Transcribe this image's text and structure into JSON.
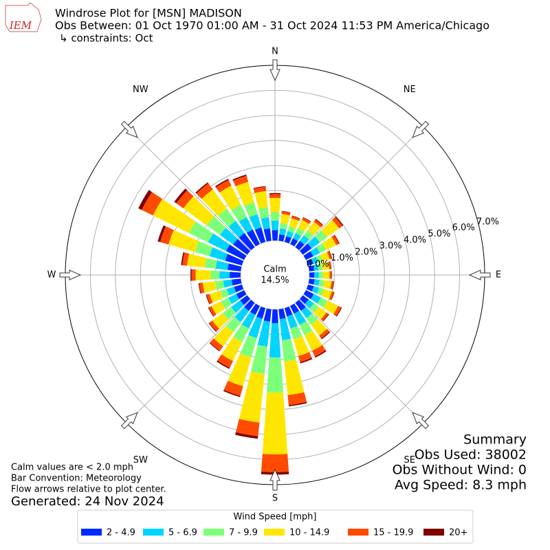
{
  "chart_data": {
    "type": "windrose",
    "logo": "IEM",
    "title": "Windrose Plot for [MSN] MADISON",
    "subtitles": [
      "Obs Between: 01 Oct 1970 01:00 AM - 31 Oct 2024 11:53 PM America/Chicago",
      "↳ constraints: Oct"
    ],
    "calm": [
      "Calm",
      "14.5%"
    ],
    "summary": [
      "Summary",
      "Obs Used: 38002",
      "Obs Without Wind: 0",
      "Avg Speed: 8.3 mph"
    ],
    "notes": [
      "Calm values are < 2.0 mph",
      "Bar Convention: Meteorology",
      "Flow arrows relative to plot center."
    ],
    "generated": "Generated: 24 Nov 2024",
    "legend_title": "Wind Speed [mph]",
    "rlim": [
      0,
      7
    ],
    "rticks": [
      {
        "value": 0,
        "label": "0.0%"
      },
      {
        "value": 1,
        "label": "1.0%"
      },
      {
        "value": 2,
        "label": "2.0%"
      },
      {
        "value": 3,
        "label": "3.0%"
      },
      {
        "value": 4,
        "label": "4.0%"
      },
      {
        "value": 5,
        "label": "5.0%"
      },
      {
        "value": 6,
        "label": "6.0%"
      },
      {
        "value": 7,
        "label": "7.0%"
      }
    ],
    "thetaticks": [
      {
        "value": 0,
        "label": "N"
      },
      {
        "value": 45,
        "label": "NE"
      },
      {
        "value": 90,
        "label": "E"
      },
      {
        "value": 135,
        "label": "SE"
      },
      {
        "value": 180,
        "label": "S"
      },
      {
        "value": 225,
        "label": "SW"
      },
      {
        "value": 270,
        "label": "W"
      },
      {
        "value": 315,
        "label": "NW"
      }
    ],
    "grid": true,
    "x": [
      0,
      10,
      20,
      30,
      40,
      50,
      60,
      70,
      80,
      90,
      100,
      110,
      120,
      130,
      140,
      150,
      160,
      170,
      180,
      190,
      200,
      210,
      220,
      230,
      240,
      250,
      260,
      270,
      280,
      290,
      300,
      310,
      320,
      330,
      340,
      350
    ],
    "series": [
      {
        "name": "2 - 4.9",
        "color": "#0029ff",
        "values": [
          0.42,
          0.26,
          0.24,
          0.26,
          0.31,
          0.44,
          0.33,
          0.22,
          0.2,
          0.2,
          0.22,
          0.24,
          0.35,
          0.29,
          0.4,
          0.35,
          0.35,
          0.4,
          0.55,
          0.5,
          0.45,
          0.4,
          0.4,
          0.35,
          0.35,
          0.33,
          0.37,
          0.44,
          0.53,
          0.7,
          0.8,
          0.7,
          0.7,
          0.65,
          0.6,
          0.5
        ]
      },
      {
        "name": "5 - 6.9",
        "color": "#00d4ff",
        "values": [
          0.38,
          0.24,
          0.22,
          0.24,
          0.28,
          0.4,
          0.3,
          0.2,
          0.18,
          0.18,
          0.2,
          0.22,
          0.32,
          0.26,
          0.36,
          0.5,
          0.5,
          0.85,
          1.37,
          1.0,
          0.8,
          0.6,
          0.55,
          0.45,
          0.35,
          0.3,
          0.34,
          0.4,
          0.48,
          0.65,
          0.8,
          0.65,
          0.6,
          0.55,
          0.55,
          0.45
        ]
      },
      {
        "name": "7 - 9.9",
        "color": "#7dff7a",
        "values": [
          0.34,
          0.22,
          0.2,
          0.22,
          0.25,
          0.36,
          0.27,
          0.18,
          0.16,
          0.16,
          0.18,
          0.2,
          0.29,
          0.23,
          0.32,
          0.45,
          0.45,
          0.85,
          1.4,
          1.1,
          0.8,
          0.6,
          0.5,
          0.4,
          0.32,
          0.27,
          0.31,
          0.36,
          0.43,
          0.6,
          0.85,
          0.65,
          0.6,
          0.55,
          0.5,
          0.4
        ]
      },
      {
        "name": "10 - 14.9",
        "color": "#ffe600",
        "values": [
          0.57,
          0.36,
          0.33,
          0.36,
          0.42,
          0.6,
          0.45,
          0.3,
          0.27,
          0.27,
          0.3,
          0.33,
          0.48,
          0.39,
          0.54,
          0.7,
          0.7,
          1.35,
          2.47,
          1.95,
          1.2,
          0.85,
          0.7,
          0.52,
          0.43,
          0.45,
          0.51,
          0.6,
          0.72,
          1.1,
          1.6,
          1.15,
          0.95,
          0.85,
          0.85,
          0.65
        ]
      },
      {
        "name": "15 - 19.9",
        "color": "#ff4a00",
        "values": [
          0.15,
          0.1,
          0.09,
          0.1,
          0.11,
          0.16,
          0.12,
          0.08,
          0.07,
          0.07,
          0.08,
          0.09,
          0.13,
          0.1,
          0.14,
          0.25,
          0.25,
          0.4,
          0.71,
          0.55,
          0.4,
          0.3,
          0.22,
          0.15,
          0.12,
          0.12,
          0.14,
          0.16,
          0.19,
          0.35,
          0.5,
          0.35,
          0.3,
          0.25,
          0.25,
          0.17
        ]
      },
      {
        "name": "20+",
        "color": "#800000",
        "values": [
          0.04,
          0.02,
          0.02,
          0.02,
          0.03,
          0.04,
          0.03,
          0.02,
          0.02,
          0.02,
          0.02,
          0.02,
          0.03,
          0.03,
          0.04,
          0.05,
          0.05,
          0.05,
          0.1,
          0.1,
          0.05,
          0.05,
          0.03,
          0.03,
          0.03,
          0.03,
          0.03,
          0.04,
          0.05,
          0.1,
          0.15,
          0.1,
          0.05,
          0.05,
          0.05,
          0.03
        ]
      }
    ]
  }
}
